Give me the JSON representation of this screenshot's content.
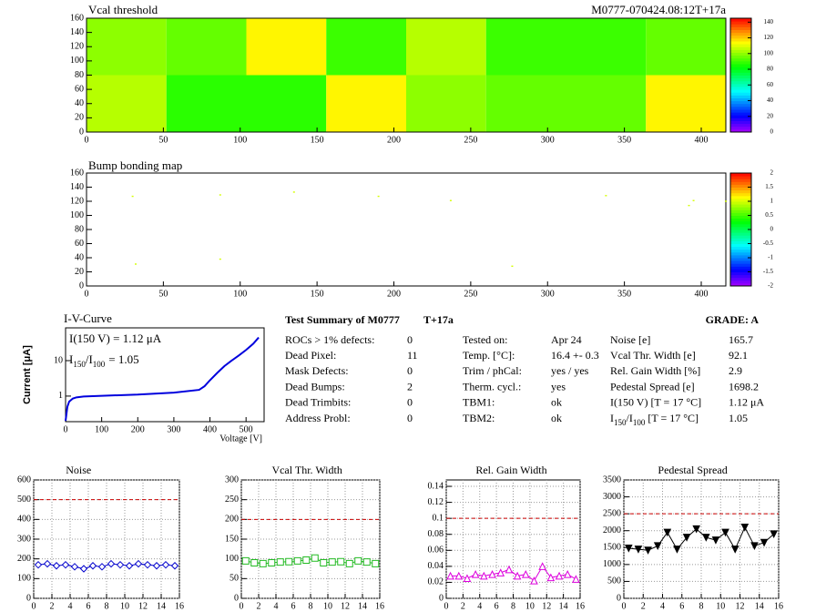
{
  "chart_data": [
    {
      "type": "heatmap",
      "title": "Vcal threshold",
      "subtitle": "M0777-070424.08:12T+17a",
      "x_edges": [
        0,
        52,
        104,
        156,
        208,
        260,
        312,
        364,
        416
      ],
      "y_edges": [
        0,
        80,
        160
      ],
      "z": [
        [
          105,
          88,
          88,
          115,
          100,
          95,
          95,
          115
        ],
        [
          100,
          95,
          115,
          90,
          105,
          90,
          90,
          95
        ]
      ],
      "xlim": [
        0,
        416
      ],
      "ylim": [
        0,
        160
      ],
      "zlim": [
        0,
        145
      ],
      "xticks": [
        0,
        50,
        100,
        150,
        200,
        250,
        300,
        350,
        400
      ],
      "yticks": [
        0,
        20,
        40,
        60,
        80,
        100,
        120,
        140,
        160
      ],
      "zticks": [
        0,
        20,
        40,
        60,
        80,
        100,
        120,
        140
      ]
    },
    {
      "type": "scatter",
      "title": "Bump bonding map",
      "x": [
        30,
        87,
        135,
        190,
        237,
        338,
        392,
        395,
        416,
        32,
        87,
        277
      ],
      "y": [
        127,
        129,
        133,
        127,
        121,
        128,
        114,
        121,
        120,
        31,
        38,
        28
      ],
      "z": [
        1,
        1,
        1,
        1,
        1,
        1,
        1,
        1,
        1,
        1,
        1,
        1
      ],
      "xlim": [
        0,
        416
      ],
      "ylim": [
        0,
        160
      ],
      "zlim": [
        -2,
        2
      ],
      "xticks": [
        0,
        50,
        100,
        150,
        200,
        250,
        300,
        350,
        400
      ],
      "yticks": [
        0,
        20,
        40,
        60,
        80,
        100,
        120,
        140,
        160
      ],
      "zticks": [
        -2,
        -1.5,
        -1,
        -0.5,
        0,
        0.5,
        1,
        1.5,
        2
      ]
    },
    {
      "type": "iv",
      "title": "I-V-Curve",
      "xlabel": "Voltage [V]",
      "ylabel": "Current [μA]",
      "color": "#0000dd",
      "log_y": true,
      "annotation": "I(150 V) = 1.12 μA",
      "annotation2": [
        "I",
        "150",
        "/I",
        "100",
        "=  1.05"
      ],
      "x": [
        0,
        5,
        10,
        20,
        30,
        50,
        100,
        200,
        300,
        370,
        385,
        400,
        420,
        440,
        460,
        480,
        500,
        520,
        535
      ],
      "y": [
        0.2,
        0.5,
        0.7,
        0.85,
        0.92,
        0.97,
        1.02,
        1.1,
        1.25,
        1.5,
        1.9,
        2.8,
        4.5,
        7,
        10,
        14,
        20,
        30,
        45
      ],
      "xlim": [
        0,
        550
      ],
      "ylim": [
        0.19,
        84
      ],
      "xticks": [
        0,
        100,
        200,
        300,
        400,
        500
      ],
      "yticks": [
        1,
        10
      ]
    },
    {
      "type": "line",
      "title": "Noise",
      "color": "#0000cc",
      "marker": "diamond",
      "limit": 500,
      "grid": true,
      "x": [
        0.5,
        1.5,
        2.5,
        3.5,
        4.5,
        5.5,
        6.5,
        7.5,
        8.5,
        9.5,
        10.5,
        11.5,
        12.5,
        13.5,
        14.5,
        15.5
      ],
      "values": [
        170,
        175,
        165,
        170,
        160,
        150,
        165,
        160,
        175,
        170,
        165,
        175,
        170,
        165,
        170,
        165
      ],
      "xlim": [
        0,
        16
      ],
      "ylim": [
        0,
        600
      ],
      "xticks": [
        0,
        2,
        4,
        6,
        8,
        10,
        12,
        14,
        16
      ],
      "yticks": [
        0,
        100,
        200,
        300,
        400,
        500,
        600
      ]
    },
    {
      "type": "line",
      "title": "Vcal Thr. Width",
      "color": "#22bb22",
      "marker": "square",
      "limit": 200,
      "grid": true,
      "x": [
        0.5,
        1.5,
        2.5,
        3.5,
        4.5,
        5.5,
        6.5,
        7.5,
        8.5,
        9.5,
        10.5,
        11.5,
        12.5,
        13.5,
        14.5,
        15.5
      ],
      "values": [
        95,
        90,
        88,
        90,
        92,
        93,
        95,
        97,
        102,
        90,
        92,
        93,
        88,
        95,
        92,
        88
      ],
      "xlim": [
        0,
        16
      ],
      "ylim": [
        0,
        300
      ],
      "xticks": [
        0,
        2,
        4,
        6,
        8,
        10,
        12,
        14,
        16
      ],
      "yticks": [
        0,
        50,
        100,
        150,
        200,
        250,
        300
      ]
    },
    {
      "type": "line",
      "title": "Rel. Gain Width",
      "color": "#dd00dd",
      "marker": "triangle-up",
      "limit": 0.1,
      "grid": true,
      "x": [
        0.5,
        1.5,
        2.5,
        3.5,
        4.5,
        5.5,
        6.5,
        7.5,
        8.5,
        9.5,
        10.5,
        11.5,
        12.5,
        13.5,
        14.5,
        15.5
      ],
      "values": [
        0.028,
        0.028,
        0.025,
        0.03,
        0.028,
        0.03,
        0.032,
        0.036,
        0.028,
        0.03,
        0.022,
        0.04,
        0.026,
        0.028,
        0.03,
        0.024
      ],
      "xlim": [
        0,
        16
      ],
      "ylim": [
        0,
        0.148
      ],
      "xticks": [
        0,
        2,
        4,
        6,
        8,
        10,
        12,
        14,
        16
      ],
      "yticks": [
        0,
        0.02,
        0.04,
        0.06,
        0.08,
        0.1,
        0.12,
        0.14
      ]
    },
    {
      "type": "line",
      "title": "Pedestal Spread",
      "color": "#000000",
      "marker": "triangle-down",
      "limit": 2500,
      "grid": true,
      "x": [
        0.5,
        1.5,
        2.5,
        3.5,
        4.5,
        5.5,
        6.5,
        7.5,
        8.5,
        9.5,
        10.5,
        11.5,
        12.5,
        13.5,
        14.5,
        15.5
      ],
      "values": [
        1480,
        1450,
        1420,
        1550,
        1950,
        1450,
        1800,
        2050,
        1800,
        1720,
        1950,
        1450,
        2100,
        1550,
        1650,
        1900
      ],
      "xlim": [
        0,
        16
      ],
      "ylim": [
        0,
        3500
      ],
      "xticks": [
        0,
        2,
        4,
        6,
        8,
        10,
        12,
        14,
        16
      ],
      "yticks": [
        0,
        500,
        1000,
        1500,
        2000,
        2500,
        3000,
        3500
      ]
    }
  ],
  "summary": {
    "title": "Test Summary of M0777",
    "tag": "T+17a",
    "grade": "GRADE:  A",
    "left": [
      [
        "ROCs > 1% defects:",
        0
      ],
      [
        "Dead Pixel:",
        11
      ],
      [
        "Mask Defects:",
        0
      ],
      [
        "Dead Bumps:",
        2
      ],
      [
        "Dead Trimbits:",
        0
      ],
      [
        "Address Probl:",
        0
      ]
    ],
    "middle": [
      [
        "Tested on:",
        "Apr 24"
      ],
      [
        "Temp. [°C]:",
        "16.4 +- 0.3"
      ],
      [
        "Trim / phCal:",
        "yes / yes"
      ],
      [
        "Therm. cycl.:",
        "yes"
      ],
      [
        "TBM1:",
        "ok"
      ],
      [
        "TBM2:",
        "ok"
      ]
    ],
    "right": [
      [
        "Noise [e]",
        165.7
      ],
      [
        "Vcal Thr. Width [e]",
        92.1
      ],
      [
        "Rel. Gain Width [%]",
        2.9
      ],
      [
        "Pedestal Spread [e]",
        1698.2
      ],
      [
        "I(150 V) [T = 17 °C]",
        "1.12 μA"
      ]
    ],
    "right_last": [
      [
        "I",
        "150",
        "/I",
        "100",
        " [T = 17 °C]"
      ],
      1.05
    ]
  }
}
